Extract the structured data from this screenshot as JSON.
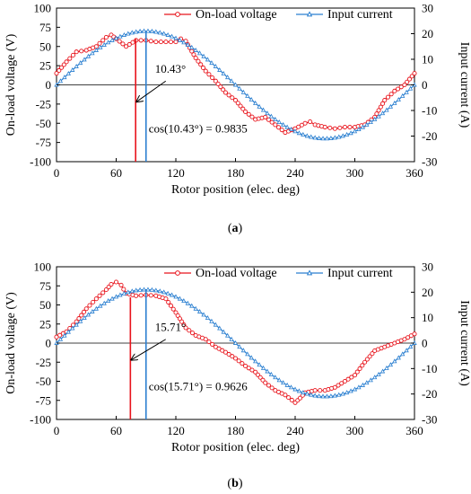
{
  "colors": {
    "voltage": "#e8141c",
    "current": "#2a7fd0",
    "axis": "#000000",
    "grid": "#000000"
  },
  "chart_data": [
    {
      "panel": "(a)",
      "panel_letter": "a",
      "type": "line",
      "xlabel": "Rotor position (elec. deg)",
      "ylabel": "On-load voltage (V)",
      "ylabel_right": "Input current (A)",
      "xlim": [
        0,
        360
      ],
      "ylim": [
        -100,
        100
      ],
      "ylim_right": [
        -30,
        30
      ],
      "x_ticks": [
        "0",
        "60",
        "120",
        "180",
        "240",
        "300",
        "360"
      ],
      "y_ticks": [
        "100",
        "75",
        "50",
        "25",
        "0",
        "-25",
        "-50",
        "-75",
        "-100"
      ],
      "y_ticks_right": [
        "30",
        "20",
        "10",
        "0",
        "-10",
        "-20",
        "-30"
      ],
      "legend_position": "top",
      "series": [
        {
          "name": "On-load voltage",
          "axis": "left",
          "marker": "circle",
          "x": [
            0,
            10,
            20,
            30,
            40,
            50,
            55,
            60,
            70,
            80,
            90,
            100,
            110,
            120,
            125,
            130,
            140,
            150,
            160,
            170,
            180,
            190,
            200,
            210,
            220,
            230,
            240,
            250,
            255,
            260,
            270,
            280,
            290,
            300,
            310,
            320,
            330,
            340,
            350,
            360
          ],
          "values": [
            15,
            30,
            43,
            45,
            50,
            62,
            65,
            60,
            50,
            58,
            58,
            56,
            56,
            56,
            60,
            57,
            35,
            18,
            5,
            -10,
            -20,
            -35,
            -45,
            -42,
            -52,
            -62,
            -57,
            -50,
            -48,
            -52,
            -55,
            -57,
            -55,
            -55,
            -52,
            -42,
            -20,
            -8,
            0,
            15
          ]
        },
        {
          "name": "Input current",
          "axis": "right",
          "marker": "triangle",
          "amplitude": 21,
          "phase_deg": 0
        }
      ],
      "annotations": {
        "voltage_peak_line_x": 79.57,
        "current_peak_line_x": 90,
        "angle_label": "10.43°",
        "cos_label": "cos(10.43°) = 0.9835"
      }
    },
    {
      "panel": "(b)",
      "panel_letter": "b",
      "type": "line",
      "xlabel": "Rotor position (elec. deg)",
      "ylabel": "On-load voltage (V)",
      "ylabel_right": "Input current (A)",
      "xlim": [
        0,
        360
      ],
      "ylim": [
        -100,
        100
      ],
      "ylim_right": [
        -30,
        30
      ],
      "x_ticks": [
        "0",
        "60",
        "120",
        "180",
        "240",
        "300",
        "360"
      ],
      "y_ticks": [
        "100",
        "75",
        "50",
        "25",
        "0",
        "-25",
        "-50",
        "-75",
        "-100"
      ],
      "y_ticks_right": [
        "30",
        "20",
        "10",
        "0",
        "-10",
        "-20",
        "-30"
      ],
      "legend_position": "top",
      "series": [
        {
          "name": "On-load voltage",
          "axis": "left",
          "marker": "circle",
          "x": [
            0,
            10,
            20,
            30,
            40,
            50,
            55,
            60,
            65,
            70,
            80,
            90,
            100,
            110,
            120,
            130,
            140,
            150,
            160,
            170,
            180,
            190,
            200,
            210,
            220,
            230,
            240,
            245,
            250,
            260,
            270,
            280,
            290,
            300,
            310,
            320,
            330,
            340,
            350,
            360
          ],
          "values": [
            8,
            15,
            28,
            45,
            58,
            70,
            77,
            80,
            76,
            65,
            62,
            63,
            62,
            58,
            40,
            20,
            10,
            5,
            -5,
            -12,
            -20,
            -30,
            -38,
            -52,
            -62,
            -68,
            -78,
            -72,
            -65,
            -62,
            -62,
            -58,
            -50,
            -42,
            -25,
            -10,
            -5,
            0,
            5,
            12
          ]
        },
        {
          "name": "Input current",
          "axis": "right",
          "marker": "triangle",
          "amplitude": 21,
          "phase_deg": 0
        }
      ],
      "annotations": {
        "voltage_peak_line_x": 74.29,
        "current_peak_line_x": 90,
        "angle_label": "15.71°",
        "cos_label": "cos(15.71°) = 0.9626"
      }
    }
  ]
}
